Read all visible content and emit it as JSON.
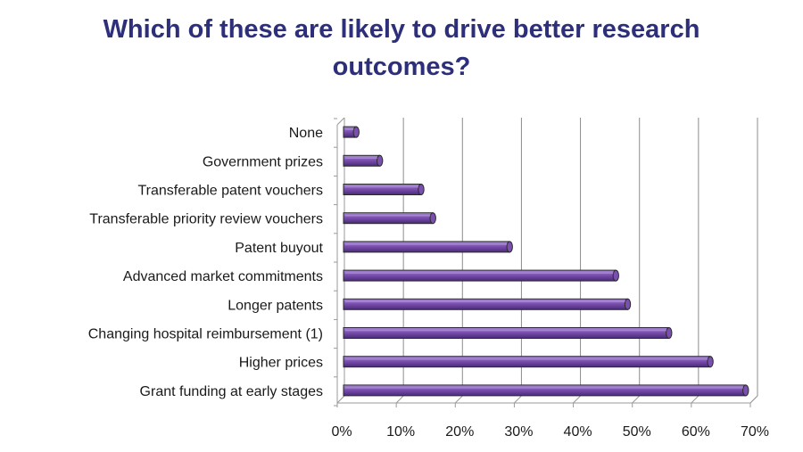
{
  "title_lines": [
    "Which of these are likely to drive better research",
    "outcomes?"
  ],
  "chart_data": {
    "type": "bar",
    "orientation": "horizontal",
    "title": "Which of these are likely to drive better research outcomes?",
    "categories": [
      "None",
      "Government prizes",
      "Transferable patent vouchers",
      "Transferable priority review vouchers",
      "Patent buyout",
      "Advanced market commitments",
      "Longer patents",
      "Changing hospital reimbursement (1)",
      "Higher prices",
      "Grant funding at early stages"
    ],
    "values": [
      2,
      6,
      13,
      15,
      28,
      46,
      48,
      55,
      62,
      68
    ],
    "xlim": [
      0,
      70
    ],
    "ticks": [
      0,
      10,
      20,
      30,
      40,
      50,
      60,
      70
    ],
    "tick_labels": [
      "0%",
      "10%",
      "20%",
      "30%",
      "40%",
      "50%",
      "60%",
      "70%"
    ],
    "xlabel": "",
    "ylabel": "",
    "grid": true,
    "bar_color": "#7b4fb0",
    "bar_color_light": "#a98ad4",
    "bar_color_dark": "#4a2a78",
    "title_color": "#2e2f7a"
  }
}
